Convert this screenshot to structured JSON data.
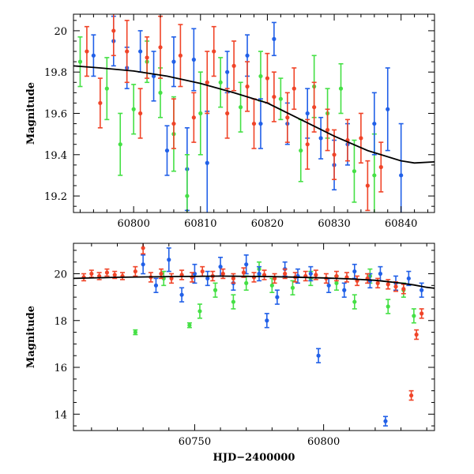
{
  "chart_data": [
    {
      "type": "scatter",
      "title": "",
      "xlabel": "",
      "ylabel": "Magnitude",
      "xlim": [
        60791,
        60845
      ],
      "ylim": [
        20.08,
        19.12
      ],
      "y_inverted": true,
      "grid": false,
      "x_ticks": [
        60800,
        60810,
        60820,
        60830,
        60840
      ],
      "x_tick_labels": [
        "60800",
        "60810",
        "60820",
        "60830",
        "60840"
      ],
      "y_ticks": [
        19.2,
        19.4,
        19.6,
        19.8,
        20.0
      ],
      "y_tick_labels": [
        "19.2",
        "19.4",
        "19.6",
        "19.8",
        "20"
      ],
      "model_curve": {
        "name": "model",
        "color": "#000000",
        "x": [
          60791,
          60795,
          60800,
          60805,
          60810,
          60815,
          60820,
          60825,
          60830,
          60835,
          60840,
          60842,
          60845
        ],
        "y": [
          19.83,
          19.82,
          19.805,
          19.78,
          19.745,
          19.7,
          19.65,
          19.57,
          19.49,
          19.42,
          19.37,
          19.36,
          19.365
        ]
      },
      "series": [
        {
          "name": "",
          "color": "#2160e8",
          "x": [
            60794,
            60797,
            60799,
            60801,
            60803,
            60805,
            60806,
            60808,
            60809,
            60811,
            60814,
            60817,
            60819,
            60821,
            60823,
            60826,
            60828,
            60830,
            60832,
            60836,
            60838,
            60840
          ],
          "y": [
            19.88,
            19.95,
            19.82,
            19.9,
            19.78,
            19.42,
            19.85,
            19.33,
            19.86,
            19.36,
            19.8,
            19.88,
            19.55,
            19.96,
            19.55,
            19.6,
            19.48,
            19.35,
            19.45,
            19.55,
            19.62,
            19.3
          ],
          "err": [
            0.1,
            0.12,
            0.1,
            0.1,
            0.12,
            0.12,
            0.12,
            0.2,
            0.15,
            0.25,
            0.1,
            0.1,
            0.12,
            0.08,
            0.1,
            0.12,
            0.1,
            0.12,
            0.1,
            0.15,
            0.2,
            0.25
          ]
        },
        {
          "name": "",
          "color": "#45e045",
          "x": [
            60792,
            60796,
            60798,
            60800,
            60802,
            60804,
            60806,
            60808,
            60810,
            60813,
            60816,
            60819,
            60822,
            60825,
            60827,
            60829,
            60831,
            60833,
            60836
          ],
          "y": [
            19.85,
            19.72,
            19.45,
            19.62,
            19.85,
            19.7,
            19.5,
            19.2,
            19.6,
            19.75,
            19.63,
            19.78,
            19.67,
            19.42,
            19.73,
            19.6,
            19.72,
            19.32,
            19.3
          ],
          "err": [
            0.12,
            0.15,
            0.15,
            0.12,
            0.1,
            0.12,
            0.18,
            0.2,
            0.2,
            0.12,
            0.12,
            0.12,
            0.1,
            0.15,
            0.15,
            0.12,
            0.12,
            0.15,
            0.2
          ]
        },
        {
          "name": "",
          "color": "#f04428",
          "x": [
            60793,
            60795,
            60797,
            60799,
            60801,
            60802,
            60804,
            60806,
            60807,
            60809,
            60811,
            60812,
            60814,
            60815,
            60817,
            60818,
            60820,
            60821,
            60823,
            60824,
            60826,
            60827,
            60829,
            60830,
            60832,
            60834,
            60835,
            60837
          ],
          "y": [
            19.9,
            19.65,
            20.0,
            19.9,
            19.6,
            19.87,
            19.92,
            19.55,
            19.88,
            19.58,
            19.75,
            19.9,
            19.6,
            19.83,
            19.73,
            19.55,
            19.77,
            19.68,
            19.58,
            19.72,
            19.45,
            19.63,
            19.52,
            19.4,
            19.47,
            19.48,
            19.25,
            19.34
          ],
          "err": [
            0.12,
            0.12,
            0.12,
            0.15,
            0.12,
            0.1,
            0.15,
            0.12,
            0.15,
            0.12,
            0.15,
            0.12,
            0.12,
            0.12,
            0.12,
            0.12,
            0.12,
            0.12,
            0.12,
            0.1,
            0.12,
            0.12,
            0.1,
            0.12,
            0.1,
            0.12,
            0.12,
            0.12
          ]
        }
      ]
    },
    {
      "type": "scatter",
      "title": "",
      "xlabel": "HJD−2400000",
      "ylabel": "Magnitude",
      "xlim": [
        60703,
        60843
      ],
      "ylim": [
        21.3,
        13.3
      ],
      "y_inverted": true,
      "grid": false,
      "x_ticks": [
        60750,
        60800
      ],
      "x_tick_labels": [
        "60750",
        "60800"
      ],
      "y_ticks": [
        14,
        16,
        18,
        20
      ],
      "y_tick_labels": [
        "14",
        "16",
        "18",
        "20"
      ],
      "model_curve": {
        "name": "model",
        "color": "#000000",
        "x": [
          60703,
          60720,
          60740,
          60760,
          60780,
          60800,
          60810,
          60820,
          60830,
          60835,
          60840,
          60843
        ],
        "y": [
          19.8,
          19.85,
          19.88,
          19.9,
          19.88,
          19.82,
          19.78,
          19.72,
          19.6,
          19.52,
          19.42,
          19.38
        ]
      },
      "series": [
        {
          "name": "",
          "color": "#2160e8",
          "x": [
            60730,
            60735,
            60740,
            60745,
            60750,
            60755,
            60760,
            60765,
            60770,
            60775,
            60778,
            60782,
            60785,
            60790,
            60795,
            60798,
            60802,
            60808,
            60812,
            60818,
            60822,
            60824,
            60828,
            60833,
            60838
          ],
          "y": [
            20.4,
            19.5,
            20.6,
            19.1,
            20.0,
            19.8,
            20.3,
            19.6,
            20.4,
            20.0,
            18.0,
            19.0,
            20.2,
            19.9,
            20.0,
            16.5,
            19.5,
            19.3,
            20.1,
            19.7,
            20.0,
            13.7,
            19.6,
            19.8,
            19.3
          ],
          "err": [
            0.4,
            0.3,
            0.5,
            0.3,
            0.4,
            0.3,
            0.4,
            0.3,
            0.4,
            0.3,
            0.3,
            0.3,
            0.3,
            0.3,
            0.3,
            0.3,
            0.3,
            0.3,
            0.3,
            0.3,
            0.3,
            0.2,
            0.3,
            0.3,
            0.3
          ]
        },
        {
          "name": "",
          "color": "#45e045",
          "x": [
            60727,
            60738,
            60748,
            60752,
            60758,
            60765,
            60770,
            60775,
            60780,
            60788,
            60795,
            60805,
            60812,
            60818,
            60825,
            60831,
            60835
          ],
          "y": [
            17.5,
            19.8,
            17.8,
            18.4,
            19.3,
            18.8,
            19.6,
            20.2,
            19.5,
            19.4,
            19.8,
            19.6,
            18.8,
            19.9,
            18.6,
            19.3,
            18.2
          ],
          "err": [
            0.1,
            0.3,
            0.1,
            0.3,
            0.3,
            0.3,
            0.3,
            0.3,
            0.3,
            0.3,
            0.3,
            0.3,
            0.3,
            0.3,
            0.3,
            0.3,
            0.3
          ]
        },
        {
          "name": "",
          "color": "#f04428",
          "x": [
            60707,
            60710,
            60713,
            60716,
            60719,
            60722,
            60727,
            60730,
            60733,
            60737,
            60741,
            60745,
            60749,
            60753,
            60757,
            60761,
            60765,
            60769,
            60773,
            60777,
            60781,
            60785,
            60789,
            60793,
            60797,
            60801,
            60805,
            60809,
            60813,
            60817,
            60821,
            60825,
            60828,
            60831,
            60834,
            60836,
            60838
          ],
          "y": [
            19.85,
            20.0,
            19.9,
            20.05,
            19.95,
            19.9,
            20.1,
            21.1,
            19.85,
            20.0,
            19.8,
            19.95,
            19.85,
            20.1,
            19.9,
            20.0,
            19.8,
            20.05,
            19.85,
            19.95,
            19.8,
            20.0,
            19.85,
            19.9,
            19.95,
            19.8,
            19.9,
            19.85,
            19.7,
            19.8,
            19.6,
            19.55,
            19.45,
            19.35,
            14.8,
            17.4,
            18.3
          ],
          "err": [
            0.15,
            0.15,
            0.15,
            0.15,
            0.15,
            0.15,
            0.2,
            0.25,
            0.2,
            0.2,
            0.2,
            0.2,
            0.2,
            0.2,
            0.2,
            0.2,
            0.2,
            0.2,
            0.2,
            0.2,
            0.2,
            0.2,
            0.2,
            0.2,
            0.2,
            0.2,
            0.2,
            0.2,
            0.2,
            0.2,
            0.2,
            0.2,
            0.2,
            0.2,
            0.2,
            0.2,
            0.2
          ]
        }
      ]
    }
  ]
}
